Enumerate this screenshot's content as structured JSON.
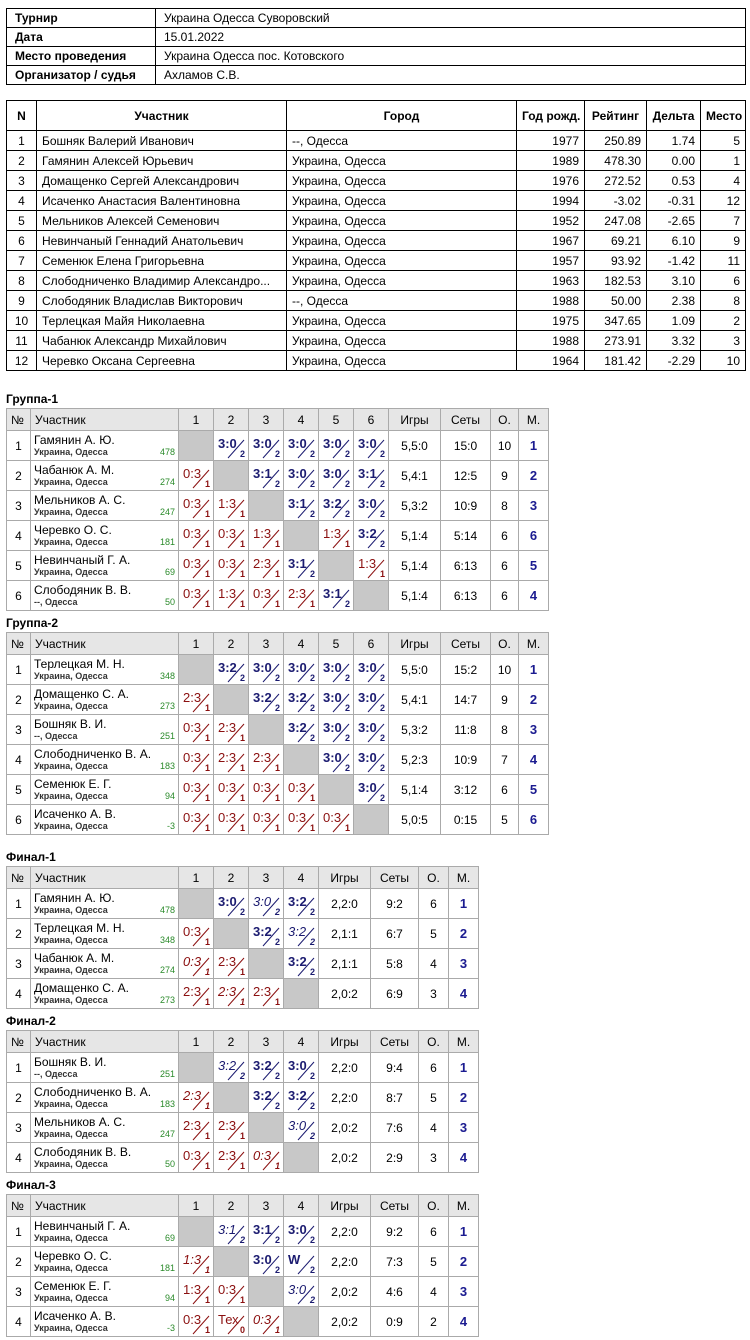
{
  "info": {
    "rows": [
      [
        "Турнир",
        "Украина Одесса Суворовский"
      ],
      [
        "Дата",
        "15.01.2022"
      ],
      [
        "Место проведения",
        "Украина Одесса пос. Котовского"
      ],
      [
        "Организатор / судья",
        "Ахламов С.В."
      ]
    ]
  },
  "participants": {
    "columns": [
      "N",
      "Участник",
      "Город",
      "Год рожд.",
      "Рейтинг",
      "Дельта",
      "Место"
    ],
    "rows": [
      [
        "1",
        "Бошняк Валерий Иванович",
        "--, Одесса",
        "1977",
        "250.89",
        "1.74",
        "5"
      ],
      [
        "2",
        "Гамянин Алексей Юрьевич",
        "Украина, Одесса",
        "1989",
        "478.30",
        "0.00",
        "1"
      ],
      [
        "3",
        "Домащенко Сергей Александрович",
        "Украина, Одесса",
        "1976",
        "272.52",
        "0.53",
        "4"
      ],
      [
        "4",
        "Исаченко Анастасия Валентиновна",
        "Украина, Одесса",
        "1994",
        "-3.02",
        "-0.31",
        "12"
      ],
      [
        "5",
        "Мельников Алексей Семенович",
        "Украина, Одесса",
        "1952",
        "247.08",
        "-2.65",
        "7"
      ],
      [
        "6",
        "Невинчаный Геннадий Анатольевич",
        "Украина, Одесса",
        "1967",
        "69.21",
        "6.10",
        "9"
      ],
      [
        "7",
        "Семенюк Елена Григорьевна",
        "Украина, Одесса",
        "1957",
        "93.92",
        "-1.42",
        "11"
      ],
      [
        "8",
        "Слободниченко Владимир Александро...",
        "Украина, Одесса",
        "1963",
        "182.53",
        "3.10",
        "6"
      ],
      [
        "9",
        "Слободяник Владислав Викторович",
        "--, Одесса",
        "1988",
        "50.00",
        "2.38",
        "8"
      ],
      [
        "10",
        "Терлецкая Майя Николаевна",
        "Украина, Одесса",
        "1975",
        "347.65",
        "1.09",
        "2"
      ],
      [
        "11",
        "Чабанюк Александр Михайлович",
        "Украина, Одесса",
        "1988",
        "273.91",
        "3.32",
        "3"
      ],
      [
        "12",
        "Черевко Оксана Сергеевна",
        "Украина, Одесса",
        "1964",
        "181.42",
        "-2.29",
        "10"
      ]
    ]
  },
  "groups": [
    {
      "title": "Группа-1",
      "columns": [
        "№",
        "Участник",
        "1",
        "2",
        "3",
        "4",
        "5",
        "6",
        "Игры",
        "Сеты",
        "О.",
        "М."
      ],
      "rows": [
        {
          "n": "1",
          "name": "Гамянин А. Ю.",
          "city": "Украина, Одесса",
          "rating": "478",
          "cells": [
            null,
            {
              "s": "3:0",
              "p": "2"
            },
            {
              "s": "3:0",
              "p": "2"
            },
            {
              "s": "3:0",
              "p": "2"
            },
            {
              "s": "3:0",
              "p": "2"
            },
            {
              "s": "3:0",
              "p": "2"
            }
          ],
          "games": "5,5:0",
          "sets": "15:0",
          "points": "10",
          "place": "1"
        },
        {
          "n": "2",
          "name": "Чабанюк А. М.",
          "city": "Украина, Одесса",
          "rating": "274",
          "cells": [
            {
              "s": "0:3",
              "p": "1"
            },
            null,
            {
              "s": "3:1",
              "p": "2"
            },
            {
              "s": "3:0",
              "p": "2"
            },
            {
              "s": "3:0",
              "p": "2"
            },
            {
              "s": "3:1",
              "p": "2"
            }
          ],
          "games": "5,4:1",
          "sets": "12:5",
          "points": "9",
          "place": "2"
        },
        {
          "n": "3",
          "name": "Мельников А. С.",
          "city": "Украина, Одесса",
          "rating": "247",
          "cells": [
            {
              "s": "0:3",
              "p": "1"
            },
            {
              "s": "1:3",
              "p": "1"
            },
            null,
            {
              "s": "3:1",
              "p": "2"
            },
            {
              "s": "3:2",
              "p": "2"
            },
            {
              "s": "3:0",
              "p": "2"
            }
          ],
          "games": "5,3:2",
          "sets": "10:9",
          "points": "8",
          "place": "3"
        },
        {
          "n": "4",
          "name": "Черевко О. С.",
          "city": "Украина, Одесса",
          "rating": "181",
          "cells": [
            {
              "s": "0:3",
              "p": "1"
            },
            {
              "s": "0:3",
              "p": "1"
            },
            {
              "s": "1:3",
              "p": "1"
            },
            null,
            {
              "s": "1:3",
              "p": "1"
            },
            {
              "s": "3:2",
              "p": "2"
            }
          ],
          "games": "5,1:4",
          "sets": "5:14",
          "points": "6",
          "place": "6"
        },
        {
          "n": "5",
          "name": "Невинчаный Г. А.",
          "city": "Украина, Одесса",
          "rating": "69",
          "cells": [
            {
              "s": "0:3",
              "p": "1"
            },
            {
              "s": "0:3",
              "p": "1"
            },
            {
              "s": "2:3",
              "p": "1"
            },
            {
              "s": "3:1",
              "p": "2"
            },
            null,
            {
              "s": "1:3",
              "p": "1"
            }
          ],
          "games": "5,1:4",
          "sets": "6:13",
          "points": "6",
          "place": "5"
        },
        {
          "n": "6",
          "name": "Слободяник В. В.",
          "city": "--, Одесса",
          "rating": "50",
          "cells": [
            {
              "s": "0:3",
              "p": "1"
            },
            {
              "s": "1:3",
              "p": "1"
            },
            {
              "s": "0:3",
              "p": "1"
            },
            {
              "s": "2:3",
              "p": "1"
            },
            {
              "s": "3:1",
              "p": "2"
            },
            null
          ],
          "games": "5,1:4",
          "sets": "6:13",
          "points": "6",
          "place": "4"
        }
      ]
    },
    {
      "title": "Группа-2",
      "columns": [
        "№",
        "Участник",
        "1",
        "2",
        "3",
        "4",
        "5",
        "6",
        "Игры",
        "Сеты",
        "О.",
        "М."
      ],
      "rows": [
        {
          "n": "1",
          "name": "Терлецкая М. Н.",
          "city": "Украина, Одесса",
          "rating": "348",
          "cells": [
            null,
            {
              "s": "3:2",
              "p": "2"
            },
            {
              "s": "3:0",
              "p": "2"
            },
            {
              "s": "3:0",
              "p": "2"
            },
            {
              "s": "3:0",
              "p": "2"
            },
            {
              "s": "3:0",
              "p": "2"
            }
          ],
          "games": "5,5:0",
          "sets": "15:2",
          "points": "10",
          "place": "1"
        },
        {
          "n": "2",
          "name": "Домащенко С. А.",
          "city": "Украина, Одесса",
          "rating": "273",
          "cells": [
            {
              "s": "2:3",
              "p": "1"
            },
            null,
            {
              "s": "3:2",
              "p": "2"
            },
            {
              "s": "3:2",
              "p": "2"
            },
            {
              "s": "3:0",
              "p": "2"
            },
            {
              "s": "3:0",
              "p": "2"
            }
          ],
          "games": "5,4:1",
          "sets": "14:7",
          "points": "9",
          "place": "2"
        },
        {
          "n": "3",
          "name": "Бошняк В. И.",
          "city": "--, Одесса",
          "rating": "251",
          "cells": [
            {
              "s": "0:3",
              "p": "1"
            },
            {
              "s": "2:3",
              "p": "1"
            },
            null,
            {
              "s": "3:2",
              "p": "2"
            },
            {
              "s": "3:0",
              "p": "2"
            },
            {
              "s": "3:0",
              "p": "2"
            }
          ],
          "games": "5,3:2",
          "sets": "11:8",
          "points": "8",
          "place": "3"
        },
        {
          "n": "4",
          "name": "Слободниченко В. А.",
          "city": "Украина, Одесса",
          "rating": "183",
          "cells": [
            {
              "s": "0:3",
              "p": "1"
            },
            {
              "s": "2:3",
              "p": "1"
            },
            {
              "s": "2:3",
              "p": "1"
            },
            null,
            {
              "s": "3:0",
              "p": "2"
            },
            {
              "s": "3:0",
              "p": "2"
            }
          ],
          "games": "5,2:3",
          "sets": "10:9",
          "points": "7",
          "place": "4"
        },
        {
          "n": "5",
          "name": "Семенюк Е. Г.",
          "city": "Украина, Одесса",
          "rating": "94",
          "cells": [
            {
              "s": "0:3",
              "p": "1"
            },
            {
              "s": "0:3",
              "p": "1"
            },
            {
              "s": "0:3",
              "p": "1"
            },
            {
              "s": "0:3",
              "p": "1"
            },
            null,
            {
              "s": "3:0",
              "p": "2"
            }
          ],
          "games": "5,1:4",
          "sets": "3:12",
          "points": "6",
          "place": "5"
        },
        {
          "n": "6",
          "name": "Исаченко А. В.",
          "city": "Украина, Одесса",
          "rating": "-3",
          "cells": [
            {
              "s": "0:3",
              "p": "1"
            },
            {
              "s": "0:3",
              "p": "1"
            },
            {
              "s": "0:3",
              "p": "1"
            },
            {
              "s": "0:3",
              "p": "1"
            },
            {
              "s": "0:3",
              "p": "1"
            },
            null
          ],
          "games": "5,0:5",
          "sets": "0:15",
          "points": "5",
          "place": "6"
        }
      ]
    },
    {
      "title": "Финал-1",
      "columns": [
        "№",
        "Участник",
        "1",
        "2",
        "3",
        "4",
        "Игры",
        "Сеты",
        "О.",
        "М."
      ],
      "rows": [
        {
          "n": "1",
          "name": "Гамянин А. Ю.",
          "city": "Украина, Одесса",
          "rating": "478",
          "cells": [
            null,
            {
              "s": "3:0",
              "p": "2"
            },
            {
              "s": "3:0",
              "p": "2",
              "i": true
            },
            {
              "s": "3:2",
              "p": "2"
            }
          ],
          "games": "2,2:0",
          "sets": "9:2",
          "points": "6",
          "place": "1"
        },
        {
          "n": "2",
          "name": "Терлецкая М. Н.",
          "city": "Украина, Одесса",
          "rating": "348",
          "cells": [
            {
              "s": "0:3",
              "p": "1"
            },
            null,
            {
              "s": "3:2",
              "p": "2"
            },
            {
              "s": "3:2",
              "p": "2",
              "i": true
            }
          ],
          "games": "2,1:1",
          "sets": "6:7",
          "points": "5",
          "place": "2"
        },
        {
          "n": "3",
          "name": "Чабанюк А. М.",
          "city": "Украина, Одесса",
          "rating": "274",
          "cells": [
            {
              "s": "0:3",
              "p": "1",
              "i": true
            },
            {
              "s": "2:3",
              "p": "1"
            },
            null,
            {
              "s": "3:2",
              "p": "2"
            }
          ],
          "games": "2,1:1",
          "sets": "5:8",
          "points": "4",
          "place": "3"
        },
        {
          "n": "4",
          "name": "Домащенко С. А.",
          "city": "Украина, Одесса",
          "rating": "273",
          "cells": [
            {
              "s": "2:3",
              "p": "1"
            },
            {
              "s": "2:3",
              "p": "1",
              "i": true
            },
            {
              "s": "2:3",
              "p": "1"
            },
            null
          ],
          "games": "2,0:2",
          "sets": "6:9",
          "points": "3",
          "place": "4"
        }
      ]
    },
    {
      "title": "Финал-2",
      "columns": [
        "№",
        "Участник",
        "1",
        "2",
        "3",
        "4",
        "Игры",
        "Сеты",
        "О.",
        "М."
      ],
      "rows": [
        {
          "n": "1",
          "name": "Бошняк В. И.",
          "city": "--, Одесса",
          "rating": "251",
          "cells": [
            null,
            {
              "s": "3:2",
              "p": "2",
              "i": true
            },
            {
              "s": "3:2",
              "p": "2"
            },
            {
              "s": "3:0",
              "p": "2"
            }
          ],
          "games": "2,2:0",
          "sets": "9:4",
          "points": "6",
          "place": "1"
        },
        {
          "n": "2",
          "name": "Слободниченко В. А.",
          "city": "Украина, Одесса",
          "rating": "183",
          "cells": [
            {
              "s": "2:3",
              "p": "1",
              "i": true
            },
            null,
            {
              "s": "3:2",
              "p": "2"
            },
            {
              "s": "3:2",
              "p": "2"
            }
          ],
          "games": "2,2:0",
          "sets": "8:7",
          "points": "5",
          "place": "2"
        },
        {
          "n": "3",
          "name": "Мельников А. С.",
          "city": "Украина, Одесса",
          "rating": "247",
          "cells": [
            {
              "s": "2:3",
              "p": "1"
            },
            {
              "s": "2:3",
              "p": "1"
            },
            null,
            {
              "s": "3:0",
              "p": "2",
              "i": true
            }
          ],
          "games": "2,0:2",
          "sets": "7:6",
          "points": "4",
          "place": "3"
        },
        {
          "n": "4",
          "name": "Слободяник В. В.",
          "city": "Украина, Одесса",
          "rating": "50",
          "cells": [
            {
              "s": "0:3",
              "p": "1"
            },
            {
              "s": "2:3",
              "p": "1"
            },
            {
              "s": "0:3",
              "p": "1",
              "i": true
            },
            null
          ],
          "games": "2,0:2",
          "sets": "2:9",
          "points": "3",
          "place": "4"
        }
      ]
    },
    {
      "title": "Финал-3",
      "columns": [
        "№",
        "Участник",
        "1",
        "2",
        "3",
        "4",
        "Игры",
        "Сеты",
        "О.",
        "М."
      ],
      "rows": [
        {
          "n": "1",
          "name": "Невинчаный Г. А.",
          "city": "Украина, Одесса",
          "rating": "69",
          "cells": [
            null,
            {
              "s": "3:1",
              "p": "2",
              "i": true
            },
            {
              "s": "3:1",
              "p": "2"
            },
            {
              "s": "3:0",
              "p": "2"
            }
          ],
          "games": "2,2:0",
          "sets": "9:2",
          "points": "6",
          "place": "1"
        },
        {
          "n": "2",
          "name": "Черевко О. С.",
          "city": "Украина, Одесса",
          "rating": "181",
          "cells": [
            {
              "s": "1:3",
              "p": "1",
              "i": true
            },
            null,
            {
              "s": "3:0",
              "p": "2"
            },
            {
              "s": "W",
              "p": "2"
            }
          ],
          "games": "2,2:0",
          "sets": "7:3",
          "points": "5",
          "place": "2"
        },
        {
          "n": "3",
          "name": "Семенюк Е. Г.",
          "city": "Украина, Одесса",
          "rating": "94",
          "cells": [
            {
              "s": "1:3",
              "p": "1"
            },
            {
              "s": "0:3",
              "p": "1"
            },
            null,
            {
              "s": "3:0",
              "p": "2",
              "i": true
            }
          ],
          "games": "2,0:2",
          "sets": "4:6",
          "points": "4",
          "place": "3"
        },
        {
          "n": "4",
          "name": "Исаченко А. В.",
          "city": "Украина, Одесса",
          "rating": "-3",
          "cells": [
            {
              "s": "0:3",
              "p": "1"
            },
            {
              "s": "Тех",
              "p": "0"
            },
            {
              "s": "0:3",
              "p": "1",
              "i": true
            },
            null
          ],
          "games": "2,0:2",
          "sets": "0:9",
          "points": "2",
          "place": "4"
        }
      ]
    }
  ]
}
